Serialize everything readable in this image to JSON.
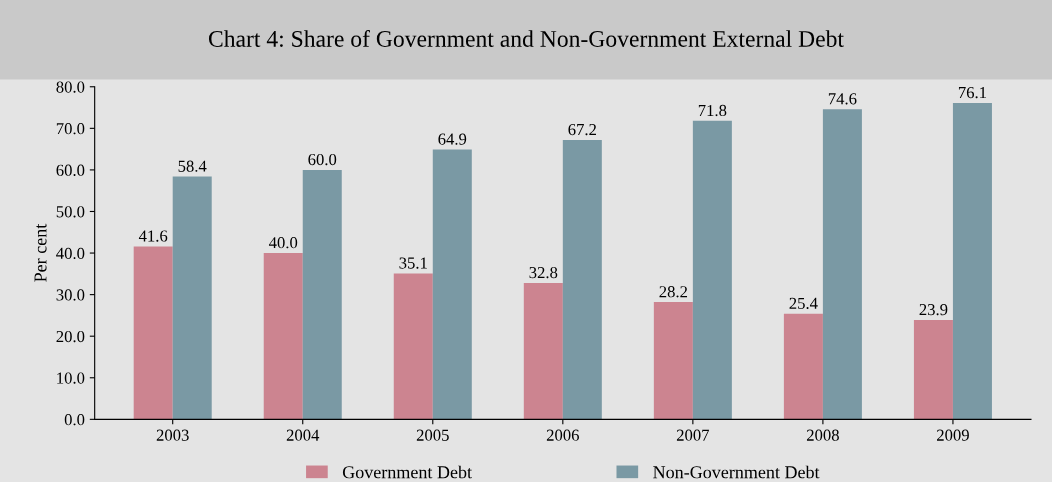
{
  "chart_data": {
    "type": "bar",
    "title": "Chart 4: Share of Government and Non-Government External Debt",
    "ylabel": "Per cent",
    "categories": [
      "2003",
      "2004",
      "2005",
      "2006",
      "2007",
      "2008",
      "2009"
    ],
    "series": [
      {
        "name": "Government Debt",
        "color": "#cc8490",
        "values": [
          41.6,
          40.0,
          35.1,
          32.8,
          28.2,
          25.4,
          23.9
        ],
        "value_labels": [
          "41.6",
          "40.0",
          "35.1",
          "32.8",
          "28.2",
          "25.4",
          "23.9"
        ]
      },
      {
        "name": "Non-Government Debt",
        "color": "#7a99a4",
        "values": [
          58.4,
          60.0,
          64.9,
          67.2,
          71.8,
          74.6,
          76.1
        ],
        "value_labels": [
          "58.4",
          "60.0",
          "64.9",
          "67.2",
          "71.8",
          "74.6",
          "76.1"
        ]
      }
    ],
    "ylim": [
      0,
      80
    ],
    "yticks": [
      {
        "value": 0,
        "label": "0.0"
      },
      {
        "value": 10,
        "label": "10.0"
      },
      {
        "value": 20,
        "label": "20.0"
      },
      {
        "value": 30,
        "label": "30.0"
      },
      {
        "value": 40,
        "label": "40.0"
      },
      {
        "value": 50,
        "label": "50.0"
      },
      {
        "value": 60,
        "label": "60.0"
      },
      {
        "value": 70,
        "label": "70.0"
      },
      {
        "value": 80,
        "label": "80.0"
      }
    ],
    "grid": false,
    "legend": "bottom"
  }
}
